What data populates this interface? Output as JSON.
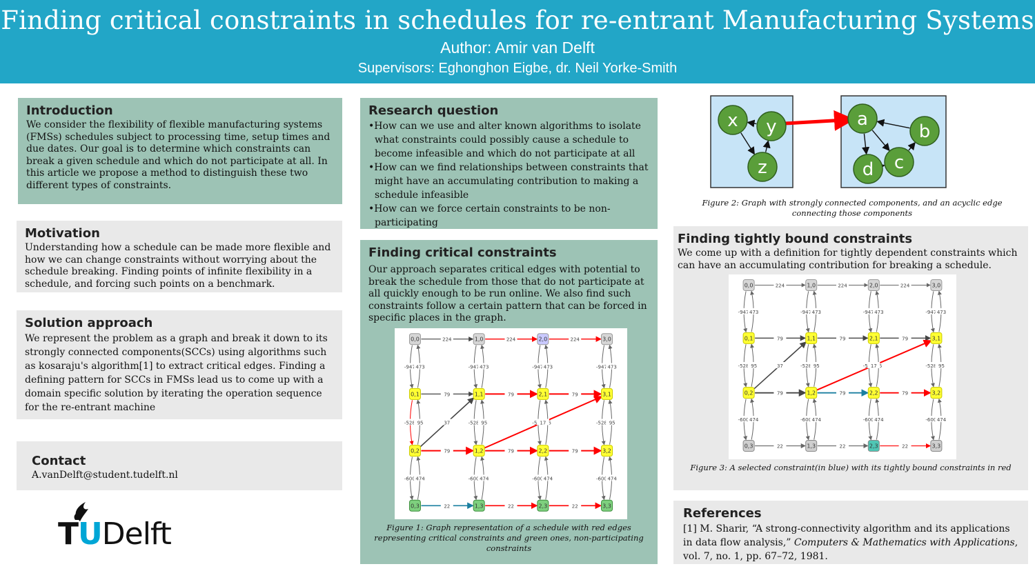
{
  "header": {
    "title": "Finding critical constraints in schedules for re-entrant Manufacturing Systems",
    "author": "Author: Amir van Delft",
    "supervisors": "Supervisors: Eghonghon Eigbe, dr. Neil Yorke-Smith"
  },
  "introduction": {
    "heading": "Introduction",
    "text": "We consider the flexibility of flexible manufacturing systems (FMSs) schedules subject to processing time, setup times and due dates. Our goal is to determine which constraints can break a given schedule and which do not participate at all. In this article we propose a method to distinguish these two different types of constraints."
  },
  "motivation": {
    "heading": "Motivation",
    "text": "Understanding how a schedule can be made more flexible and how we can change constraints without worrying about the schedule breaking. Finding points of infinite flexibility in a schedule, and forcing such points on a benchmark."
  },
  "solution": {
    "heading": "Solution approach",
    "text": "We represent the problem as a graph and break it down to its strongly connected components(SCCs) using algorithms such as kosaraju's algorithm[1] to extract critical edges. Finding a defining pattern for SCCs in FMSs lead us to come up with a domain specific solution by iterating the operation sequence for the re-entrant machine"
  },
  "contact": {
    "heading": "Contact",
    "email": "A.vanDelft@student.tudelft.nl"
  },
  "logo": {
    "text": "TUDelft"
  },
  "research": {
    "heading": "Research question",
    "items": [
      "How can we use and alter known algorithms to isolate what constraints could possibly cause a schedule to become infeasible and which do not participate at all",
      "How can we find relationships between constraints that might have an accumulating contribution to making a schedule infeasible",
      "How can we force certain constraints to be non-participating"
    ]
  },
  "critical": {
    "heading": "Finding critical constraints",
    "text": "Our approach separates critical edges with potential to break the schedule from those that do not participate at all quickly enough to be run online. We also find such constraints follow a certain pattern that can be forced in specific places in the graph.",
    "caption": "Figure 1: Graph representation of a schedule with red edges representing critical constraints and green ones, non-participating constraints",
    "graph": {
      "node_labels": [
        [
          "0,0",
          "1,0",
          "2,0",
          "3,0"
        ],
        [
          "0,1",
          "1,1",
          "2,1",
          "3,1"
        ],
        [
          "0,2",
          "1,2",
          "2,2",
          "3,2"
        ],
        [
          "0,3",
          "1,3",
          "2,3",
          "3,3"
        ]
      ],
      "h_labels": [
        "224",
        "79",
        "79",
        "22"
      ],
      "v_labels": [
        "-947",
        "-528",
        "-600",
        "-567",
        "473",
        "95",
        "474"
      ]
    }
  },
  "figure2": {
    "caption": "Figure 2: Graph with strongly connected components, and an acyclic edge connecting those components",
    "left_nodes": [
      "x",
      "y",
      "z"
    ],
    "right_nodes": [
      "a",
      "b",
      "c",
      "d"
    ],
    "colors": {
      "node": "#5a9e3a",
      "panel": "#c7e4f7",
      "arrow": "#ff0000"
    }
  },
  "tight": {
    "heading": "Finding tightly bound constraints",
    "text": "We come up with a definition for tightly dependent constraints which can have an accumulating contribution for breaking a schedule.",
    "caption": "Figure 3: A selected constraint(in blue) with its tightly bound constraints in red",
    "graph": {
      "node_labels": [
        [
          "0,0",
          "1,0",
          "2,0",
          "3,0"
        ],
        [
          "0,1",
          "1,1",
          "2,1",
          "3,1"
        ],
        [
          "0,2",
          "1,2",
          "2,2",
          "3,2"
        ],
        [
          "0,3",
          "1,3",
          "2,3",
          "3,3"
        ]
      ],
      "h_labels": [
        "224",
        "79",
        "79",
        "22"
      ],
      "v_labels": [
        "-947",
        "-528",
        "-600",
        "-567",
        "473",
        "95",
        "474"
      ]
    }
  },
  "references": {
    "heading": "References",
    "pre": "[1] M. Sharir, “A strong-connectivity algorithm and its applications in data flow analysis,” ",
    "journal": "Computers & Mathematics with Applications",
    "post": ", vol. 7, no. 1, pp. 67–72, 1981."
  }
}
